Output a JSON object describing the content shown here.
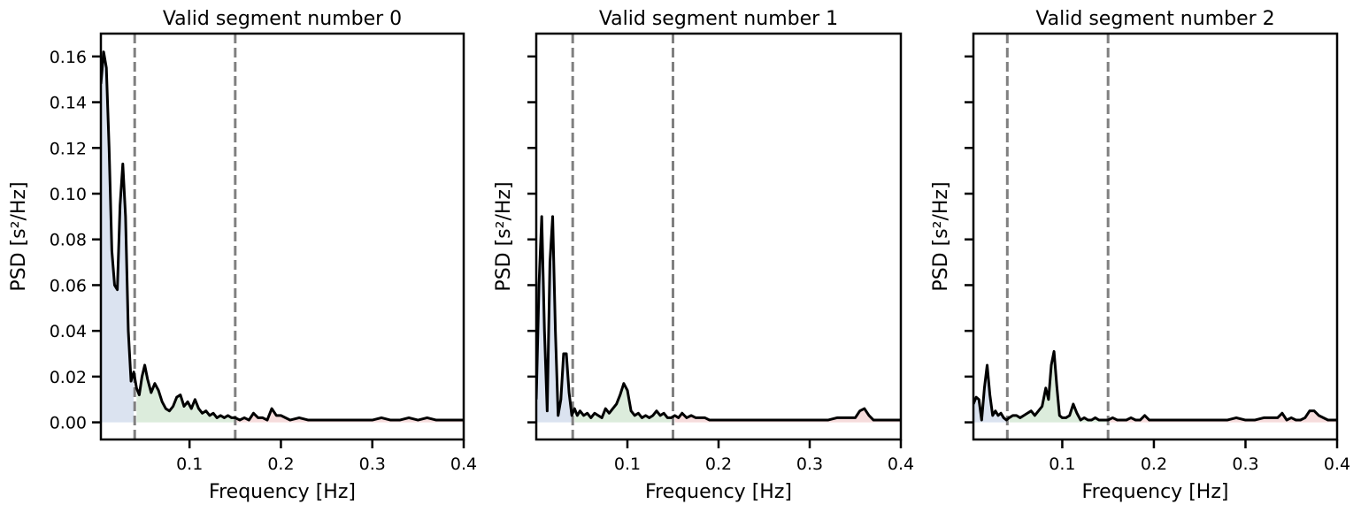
{
  "chart_data": [
    {
      "type": "line",
      "title": "Valid segment number 0",
      "xlabel": "Frequency [Hz]",
      "ylabel": "PSD [s²/Hz]",
      "xlim": [
        0.003,
        0.4
      ],
      "ylim": [
        -0.0075,
        0.17
      ],
      "xticks": [
        0.1,
        0.2,
        0.3,
        0.4
      ],
      "xtick_labels": [
        "0.1",
        "0.2",
        "0.3",
        "0.4"
      ],
      "yticks": [
        0.0,
        0.02,
        0.04,
        0.06,
        0.08,
        0.1,
        0.12,
        0.14,
        0.16
      ],
      "ytick_labels": [
        "0.00",
        "0.02",
        "0.04",
        "0.06",
        "0.08",
        "0.10",
        "0.12",
        "0.14",
        "0.16"
      ],
      "show_ytick_labels": true,
      "vlines": [
        0.04,
        0.15
      ],
      "bands": [
        {
          "range": [
            0.003,
            0.04
          ],
          "color": "#dbe3f0"
        },
        {
          "range": [
            0.04,
            0.15
          ],
          "color": "#dcecdc"
        },
        {
          "range": [
            0.15,
            0.4
          ],
          "color": "#f6dcdc"
        }
      ],
      "x": [
        0.003,
        0.006,
        0.009,
        0.012,
        0.015,
        0.018,
        0.021,
        0.024,
        0.027,
        0.03,
        0.033,
        0.036,
        0.039,
        0.042,
        0.045,
        0.048,
        0.051,
        0.054,
        0.058,
        0.062,
        0.066,
        0.07,
        0.074,
        0.078,
        0.082,
        0.086,
        0.09,
        0.094,
        0.098,
        0.102,
        0.106,
        0.11,
        0.114,
        0.118,
        0.122,
        0.126,
        0.13,
        0.134,
        0.138,
        0.142,
        0.146,
        0.15,
        0.155,
        0.16,
        0.165,
        0.17,
        0.175,
        0.18,
        0.185,
        0.19,
        0.195,
        0.2,
        0.21,
        0.22,
        0.23,
        0.24,
        0.25,
        0.26,
        0.27,
        0.28,
        0.29,
        0.3,
        0.31,
        0.32,
        0.33,
        0.34,
        0.35,
        0.36,
        0.37,
        0.38,
        0.39,
        0.4
      ],
      "y": [
        0.148,
        0.162,
        0.155,
        0.12,
        0.075,
        0.06,
        0.058,
        0.095,
        0.113,
        0.09,
        0.04,
        0.018,
        0.022,
        0.015,
        0.012,
        0.02,
        0.025,
        0.019,
        0.013,
        0.017,
        0.014,
        0.009,
        0.006,
        0.005,
        0.007,
        0.011,
        0.012,
        0.007,
        0.009,
        0.006,
        0.01,
        0.006,
        0.004,
        0.005,
        0.003,
        0.004,
        0.002,
        0.003,
        0.002,
        0.003,
        0.002,
        0.002,
        0.001,
        0.002,
        0.001,
        0.004,
        0.002,
        0.002,
        0.001,
        0.006,
        0.003,
        0.003,
        0.001,
        0.002,
        0.001,
        0.001,
        0.001,
        0.001,
        0.001,
        0.001,
        0.001,
        0.001,
        0.002,
        0.001,
        0.001,
        0.002,
        0.001,
        0.002,
        0.001,
        0.001,
        0.001,
        0.001
      ]
    },
    {
      "type": "line",
      "title": "Valid segment number 1",
      "xlabel": "Frequency [Hz]",
      "ylabel": "PSD [s²/Hz]",
      "xlim": [
        0.0,
        0.4
      ],
      "ylim": [
        -0.0075,
        0.17
      ],
      "xticks": [
        0.1,
        0.2,
        0.3,
        0.4
      ],
      "xtick_labels": [
        "0.1",
        "0.2",
        "0.3",
        "0.4"
      ],
      "yticks": [
        0.0,
        0.02,
        0.04,
        0.06,
        0.08,
        0.1,
        0.12,
        0.14,
        0.16
      ],
      "ytick_labels": [
        "",
        "",
        "",
        "",
        "",
        "",
        "",
        "",
        ""
      ],
      "show_ytick_labels": false,
      "vlines": [
        0.04,
        0.15
      ],
      "bands": [
        {
          "range": [
            0.0,
            0.04
          ],
          "color": "#dbe3f0"
        },
        {
          "range": [
            0.04,
            0.15
          ],
          "color": "#dcecdc"
        },
        {
          "range": [
            0.15,
            0.4
          ],
          "color": "#f6dcdc"
        }
      ],
      "x": [
        0.0,
        0.003,
        0.006,
        0.009,
        0.012,
        0.015,
        0.018,
        0.021,
        0.024,
        0.027,
        0.03,
        0.033,
        0.036,
        0.039,
        0.042,
        0.045,
        0.048,
        0.052,
        0.056,
        0.06,
        0.064,
        0.068,
        0.072,
        0.076,
        0.08,
        0.084,
        0.088,
        0.092,
        0.096,
        0.1,
        0.104,
        0.108,
        0.112,
        0.116,
        0.12,
        0.124,
        0.128,
        0.132,
        0.136,
        0.14,
        0.144,
        0.148,
        0.152,
        0.156,
        0.16,
        0.165,
        0.17,
        0.175,
        0.18,
        0.185,
        0.19,
        0.2,
        0.21,
        0.22,
        0.23,
        0.24,
        0.25,
        0.26,
        0.27,
        0.28,
        0.29,
        0.3,
        0.31,
        0.32,
        0.33,
        0.34,
        0.35,
        0.355,
        0.36,
        0.365,
        0.37,
        0.38,
        0.39,
        0.4
      ],
      "y": [
        0.01,
        0.06,
        0.09,
        0.04,
        0.005,
        0.07,
        0.09,
        0.04,
        0.003,
        0.01,
        0.03,
        0.03,
        0.013,
        0.003,
        0.006,
        0.003,
        0.005,
        0.003,
        0.004,
        0.002,
        0.004,
        0.003,
        0.002,
        0.006,
        0.004,
        0.006,
        0.008,
        0.012,
        0.017,
        0.014,
        0.005,
        0.003,
        0.004,
        0.002,
        0.003,
        0.002,
        0.003,
        0.005,
        0.003,
        0.004,
        0.002,
        0.002,
        0.003,
        0.002,
        0.004,
        0.002,
        0.003,
        0.002,
        0.002,
        0.002,
        0.001,
        0.001,
        0.001,
        0.001,
        0.001,
        0.001,
        0.001,
        0.001,
        0.001,
        0.001,
        0.001,
        0.001,
        0.001,
        0.001,
        0.002,
        0.002,
        0.002,
        0.005,
        0.006,
        0.003,
        0.001,
        0.001,
        0.001,
        0.001
      ]
    },
    {
      "type": "line",
      "title": "Valid segment number 2",
      "xlabel": "Frequency [Hz]",
      "ylabel": "PSD [s²/Hz]",
      "xlim": [
        0.003,
        0.4
      ],
      "ylim": [
        -0.0075,
        0.17
      ],
      "xticks": [
        0.1,
        0.2,
        0.3,
        0.4
      ],
      "xtick_labels": [
        "0.1",
        "0.2",
        "0.3",
        "0.4"
      ],
      "yticks": [
        0.0,
        0.02,
        0.04,
        0.06,
        0.08,
        0.1,
        0.12,
        0.14,
        0.16
      ],
      "ytick_labels": [
        "",
        "",
        "",
        "",
        "",
        "",
        "",
        "",
        ""
      ],
      "show_ytick_labels": false,
      "vlines": [
        0.04,
        0.15
      ],
      "bands": [
        {
          "range": [
            0.003,
            0.04
          ],
          "color": "#dbe3f0"
        },
        {
          "range": [
            0.04,
            0.15
          ],
          "color": "#dcecdc"
        },
        {
          "range": [
            0.15,
            0.4
          ],
          "color": "#f6dcdc"
        }
      ],
      "x": [
        0.003,
        0.006,
        0.009,
        0.012,
        0.015,
        0.018,
        0.021,
        0.024,
        0.027,
        0.03,
        0.033,
        0.036,
        0.039,
        0.042,
        0.046,
        0.05,
        0.054,
        0.058,
        0.062,
        0.066,
        0.07,
        0.074,
        0.078,
        0.082,
        0.085,
        0.088,
        0.091,
        0.094,
        0.097,
        0.1,
        0.104,
        0.108,
        0.112,
        0.116,
        0.12,
        0.124,
        0.128,
        0.132,
        0.136,
        0.14,
        0.145,
        0.15,
        0.155,
        0.16,
        0.165,
        0.17,
        0.175,
        0.18,
        0.185,
        0.19,
        0.195,
        0.2,
        0.21,
        0.22,
        0.23,
        0.24,
        0.25,
        0.26,
        0.27,
        0.28,
        0.29,
        0.3,
        0.31,
        0.32,
        0.33,
        0.335,
        0.34,
        0.345,
        0.35,
        0.355,
        0.36,
        0.365,
        0.37,
        0.375,
        0.38,
        0.39,
        0.4
      ],
      "y": [
        0.008,
        0.011,
        0.01,
        0.001,
        0.015,
        0.025,
        0.012,
        0.003,
        0.005,
        0.003,
        0.004,
        0.002,
        0.001,
        0.002,
        0.003,
        0.003,
        0.002,
        0.003,
        0.004,
        0.005,
        0.003,
        0.005,
        0.007,
        0.015,
        0.01,
        0.025,
        0.031,
        0.016,
        0.003,
        0.002,
        0.002,
        0.003,
        0.008,
        0.004,
        0.001,
        0.002,
        0.001,
        0.001,
        0.002,
        0.001,
        0.001,
        0.001,
        0.002,
        0.001,
        0.001,
        0.001,
        0.002,
        0.001,
        0.001,
        0.003,
        0.001,
        0.001,
        0.001,
        0.001,
        0.001,
        0.001,
        0.001,
        0.001,
        0.001,
        0.001,
        0.002,
        0.001,
        0.001,
        0.002,
        0.002,
        0.002,
        0.004,
        0.001,
        0.002,
        0.001,
        0.001,
        0.002,
        0.005,
        0.005,
        0.003,
        0.001,
        0.001
      ]
    }
  ]
}
